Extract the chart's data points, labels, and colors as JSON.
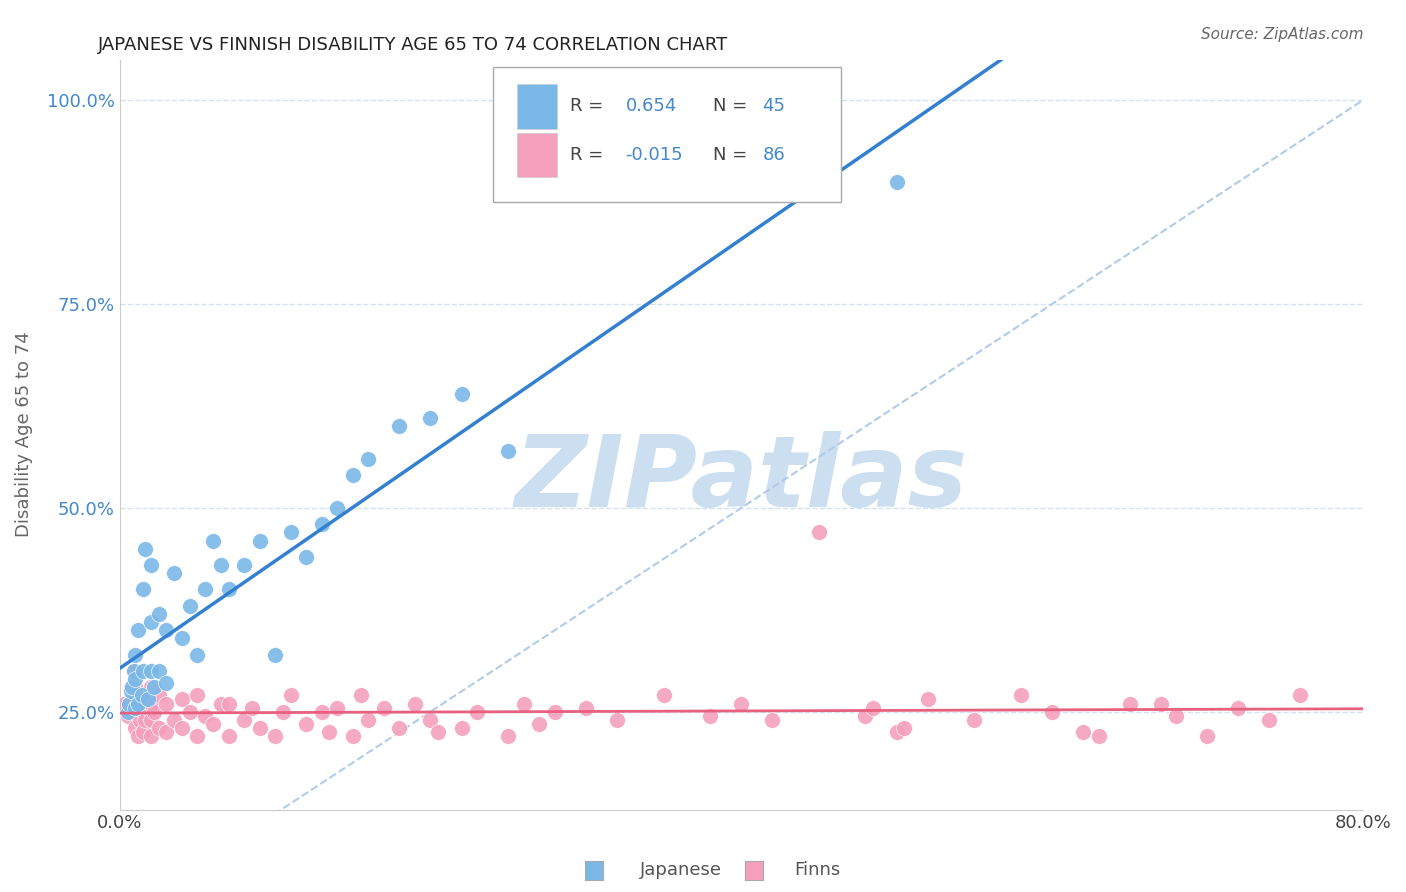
{
  "title": "JAPANESE VS FINNISH DISABILITY AGE 65 TO 74 CORRELATION CHART",
  "source": "Source: ZipAtlas.com",
  "ylabel": "Disability Age 65 to 74",
  "xmin": 0.0,
  "xmax": 80.0,
  "ymin": 13.0,
  "ymax": 105.0,
  "yticks": [
    25.0,
    50.0,
    75.0,
    100.0
  ],
  "ytick_labels": [
    "25.0%",
    "50.0%",
    "75.0%",
    "100.0%"
  ],
  "xtick_vals": [
    0.0,
    10.0,
    20.0,
    30.0,
    40.0,
    50.0,
    60.0,
    70.0,
    80.0
  ],
  "xtick_labels": [
    "0.0%",
    "",
    "",
    "",
    "",
    "",
    "",
    "",
    "80.0%"
  ],
  "R_japanese": 0.654,
  "N_japanese": 45,
  "R_finns": -0.015,
  "N_finns": 86,
  "japanese_color": "#7ab8e8",
  "finns_color": "#f4a0bc",
  "japanese_line_color": "#3380d0",
  "finns_line_color": "#e86080",
  "diagonal_color": "#b0cce8",
  "grid_color": "#d0e4f0",
  "watermark_color": "#ccdff0",
  "japanese_x": [
    0.5,
    0.6,
    0.7,
    0.8,
    0.9,
    1.0,
    1.0,
    1.0,
    1.2,
    1.2,
    1.4,
    1.5,
    1.5,
    1.6,
    1.8,
    2.0,
    2.0,
    2.0,
    2.2,
    2.5,
    2.5,
    3.0,
    3.0,
    3.5,
    4.0,
    4.5,
    5.0,
    5.5,
    6.0,
    6.5,
    7.0,
    8.0,
    9.0,
    10.0,
    11.0,
    12.0,
    13.0,
    14.0,
    15.0,
    16.0,
    18.0,
    20.0,
    22.0,
    25.0,
    50.0
  ],
  "japanese_y": [
    25.0,
    26.0,
    27.5,
    28.0,
    30.0,
    25.5,
    29.0,
    32.0,
    26.0,
    35.0,
    27.0,
    30.0,
    40.0,
    45.0,
    26.5,
    30.0,
    36.0,
    43.0,
    28.0,
    30.0,
    37.0,
    28.5,
    35.0,
    42.0,
    34.0,
    38.0,
    32.0,
    40.0,
    46.0,
    43.0,
    40.0,
    43.0,
    46.0,
    32.0,
    47.0,
    44.0,
    48.0,
    50.0,
    54.0,
    56.0,
    60.0,
    61.0,
    64.0,
    57.0,
    90.0
  ],
  "finns_x": [
    0.3,
    0.5,
    0.6,
    0.7,
    0.8,
    0.9,
    1.0,
    1.0,
    1.0,
    1.1,
    1.2,
    1.3,
    1.4,
    1.5,
    1.5,
    1.6,
    1.7,
    1.8,
    2.0,
    2.0,
    2.0,
    2.0,
    2.2,
    2.5,
    2.5,
    3.0,
    3.0,
    3.5,
    4.0,
    4.0,
    4.5,
    5.0,
    5.0,
    5.5,
    6.0,
    6.5,
    7.0,
    7.0,
    8.0,
    8.5,
    9.0,
    10.0,
    10.5,
    11.0,
    12.0,
    13.0,
    13.5,
    14.0,
    15.0,
    15.5,
    16.0,
    17.0,
    18.0,
    19.0,
    20.0,
    20.5,
    22.0,
    23.0,
    25.0,
    26.0,
    27.0,
    28.0,
    30.0,
    32.0,
    35.0,
    38.0,
    40.0,
    42.0,
    45.0,
    48.0,
    50.0,
    52.0,
    55.0,
    58.0,
    60.0,
    62.0,
    65.0,
    68.0,
    70.0,
    72.0,
    74.0,
    76.0,
    48.5,
    50.5,
    63.0,
    67.0
  ],
  "finns_y": [
    26.0,
    24.5,
    26.0,
    28.0,
    25.0,
    30.0,
    23.0,
    25.5,
    28.0,
    26.0,
    22.0,
    24.0,
    26.5,
    22.5,
    25.0,
    24.0,
    26.0,
    25.5,
    22.0,
    24.0,
    26.0,
    28.0,
    25.0,
    23.0,
    27.0,
    22.5,
    26.0,
    24.0,
    23.0,
    26.5,
    25.0,
    22.0,
    27.0,
    24.5,
    23.5,
    26.0,
    22.0,
    26.0,
    24.0,
    25.5,
    23.0,
    22.0,
    25.0,
    27.0,
    23.5,
    25.0,
    22.5,
    25.5,
    22.0,
    27.0,
    24.0,
    25.5,
    23.0,
    26.0,
    24.0,
    22.5,
    23.0,
    25.0,
    22.0,
    26.0,
    23.5,
    25.0,
    25.5,
    24.0,
    27.0,
    24.5,
    26.0,
    24.0,
    47.0,
    24.5,
    22.5,
    26.5,
    24.0,
    27.0,
    25.0,
    22.5,
    26.0,
    24.5,
    22.0,
    25.5,
    24.0,
    27.0,
    25.5,
    23.0,
    22.0,
    26.0
  ]
}
